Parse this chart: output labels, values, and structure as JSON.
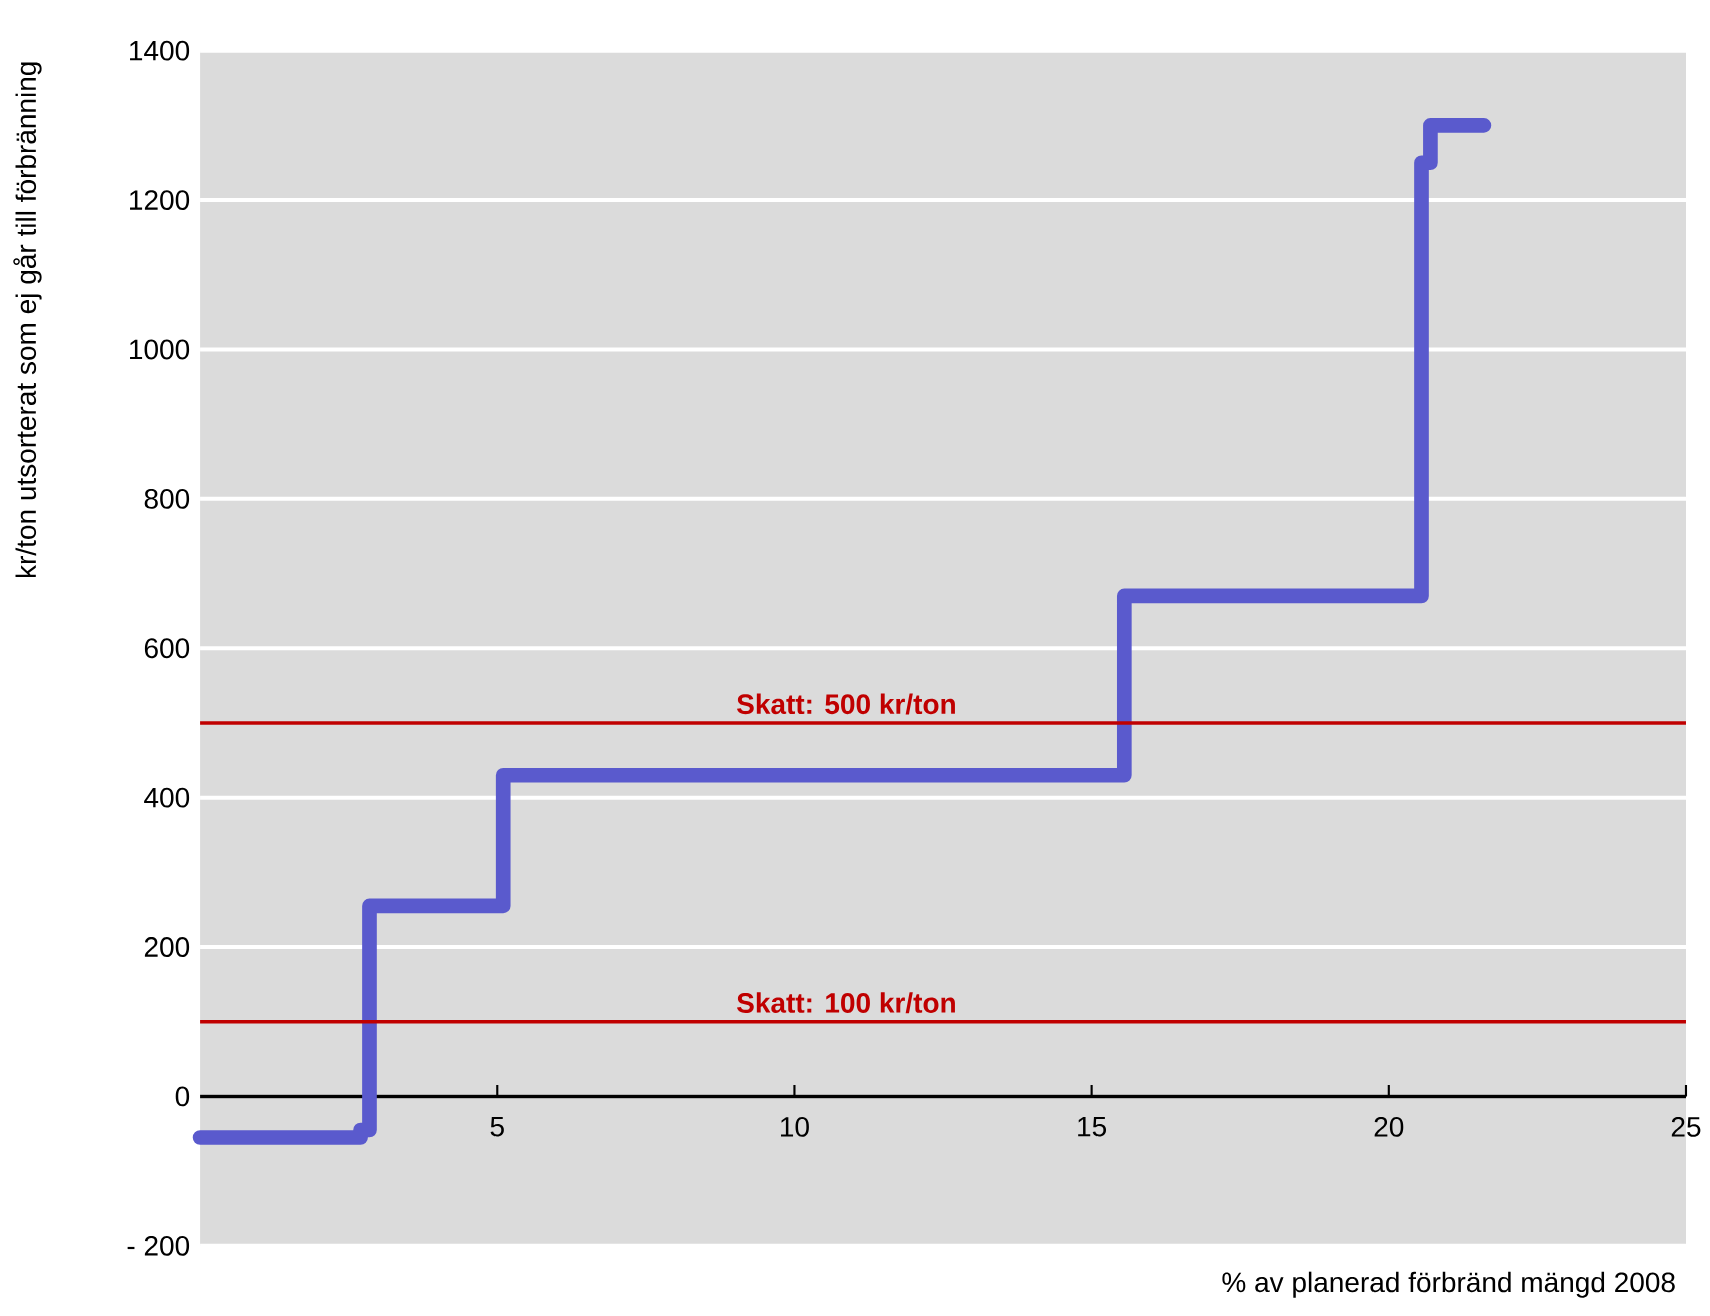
{
  "chart_data": {
    "type": "step",
    "xlabel": "% av planerad förbränd mängd 2008",
    "ylabel": "kr/ton utsorterat som ej går till förbränning",
    "x": [
      0,
      2.7,
      2.85,
      5.1,
      15.55,
      20.55,
      20.7,
      21.6
    ],
    "series": [
      {
        "color": "#5a5acd",
        "values": [
          -55,
          -45,
          255,
          430,
          670,
          1250,
          1300,
          1300
        ]
      }
    ],
    "xlim": [
      0,
      25
    ],
    "xticks": [
      5,
      10,
      15,
      20,
      25
    ],
    "ylim": [
      -200,
      1400
    ],
    "yticks": [
      {
        "value": -200,
        "label": "- 200"
      },
      0,
      200,
      400,
      600,
      800,
      1000,
      1200,
      1400
    ],
    "ref_lines": [
      {
        "axis": "y",
        "value": 500,
        "label": "Skatt: 500 kr/ton",
        "color": "#c00000"
      },
      {
        "axis": "y",
        "value": 100,
        "label": "Skatt: 100 kr/ton",
        "color": "#c00000"
      }
    ],
    "grid": "y",
    "line_style": "solid",
    "marker": "none"
  }
}
